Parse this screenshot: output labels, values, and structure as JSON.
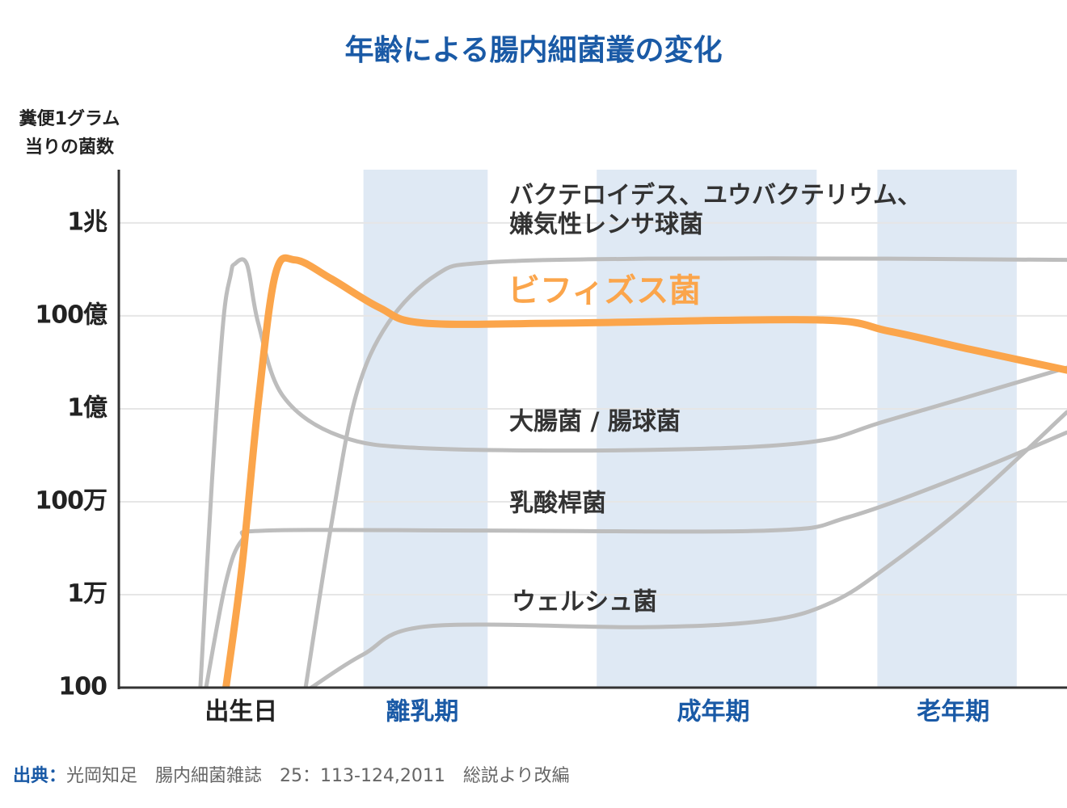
{
  "chart_data": {
    "type": "line",
    "title": "年齢による腸内細菌叢の変化",
    "ylabel": [
      "糞便1グラム",
      "当りの菌数"
    ],
    "log_scale_y": true,
    "grid": true,
    "xlim": [
      0,
      100
    ],
    "ylim": [
      100,
      14000000000000
    ],
    "yticks": [
      100,
      {
        "value": 10000,
        "label": "1万"
      },
      {
        "value": 1000000,
        "label": "100万"
      },
      {
        "value": 100000000,
        "label": "1億"
      },
      {
        "value": 10000000000,
        "label": "100億"
      },
      {
        "value": 1000000000000,
        "label": "1兆"
      }
    ],
    "xticks": [
      {
        "value": 12.9,
        "label": "出生日"
      },
      {
        "value": 32,
        "label": "離乳期"
      },
      {
        "value": 62.7,
        "label": "成年期"
      },
      {
        "value": 88,
        "label": "老年期"
      }
    ],
    "xtick_colors": [
      "#222222",
      "#1a5aa6",
      "#1a5aa6",
      "#1a5aa6"
    ],
    "bands": [
      [
        25.8,
        38.9
      ],
      [
        50.4,
        73.6
      ],
      [
        80,
        94.7
      ]
    ],
    "band_color": "#dfe9f4",
    "series": [
      {
        "label": [
          "バクテロイデス、ユウバクテリウム、",
          "嫌気性レンサ球菌"
        ],
        "color": "#bdbdbd",
        "x": [
          19.7,
          22.4,
          25.0,
          28.4,
          33.5,
          38.6,
          55.7,
          81.2,
          100
        ],
        "values": [
          100,
          310000,
          190000000,
          7000000000,
          77000000000,
          140000000000,
          170000000000,
          170000000000,
          160000000000
        ]
      },
      {
        "label": [
          "ビフィズス菌"
        ],
        "color": "#fba54b",
        "x": [
          11.3,
          13.0,
          14.7,
          16.5,
          18.6,
          22.4,
          27.5,
          32.2,
          47.1,
          73.6,
          81.2,
          89.8,
          100
        ],
        "values": [
          100,
          42000,
          130000000,
          77000000000,
          160000000000,
          63000000000,
          15000000000,
          7000000000,
          7000000000,
          8200000000,
          4700000000,
          1900000000,
          680000000
        ]
      },
      {
        "label": [
          "大腸菌 / 腸球菌"
        ],
        "color": "#bdbdbd",
        "x": [
          8.6,
          9.8,
          11.0,
          11.8,
          12.2,
          13.5,
          14.7,
          17.3,
          23.3,
          32.7,
          55.7,
          72.7,
          81.2,
          100
        ],
        "values": [
          100,
          2300000,
          7000000000,
          77000000000,
          130000000000,
          130000000000,
          7000000000,
          190000000,
          26000000,
          14000000,
          13000000,
          19000000,
          57000000,
          770000000
        ]
      },
      {
        "label": [
          "乳酸桿菌"
        ],
        "color": "#bdbdbd",
        "x": [
          9.2,
          11.3,
          13.0,
          15.6,
          38.6,
          68.5,
          77.0,
          89.8,
          100
        ],
        "values": [
          100,
          19000,
          150000,
          240000,
          240000,
          240000,
          470000,
          4200000,
          31000000
        ]
      },
      {
        "label": [
          "ウェルシュ菌"
        ],
        "color": "#bdbdbd",
        "x": [
          20.3,
          25.8,
          32.7,
          55.7,
          68.5,
          75.3,
          81.2,
          89.8,
          100
        ],
        "values": [
          100,
          520,
          2100,
          2000,
          2800,
          7000,
          42000,
          1000000,
          85000000
        ]
      }
    ],
    "source": {
      "label": "出典：",
      "text": "光岡知足　腸内細菌雑誌　25：113-124,2011　総説より改編"
    }
  }
}
